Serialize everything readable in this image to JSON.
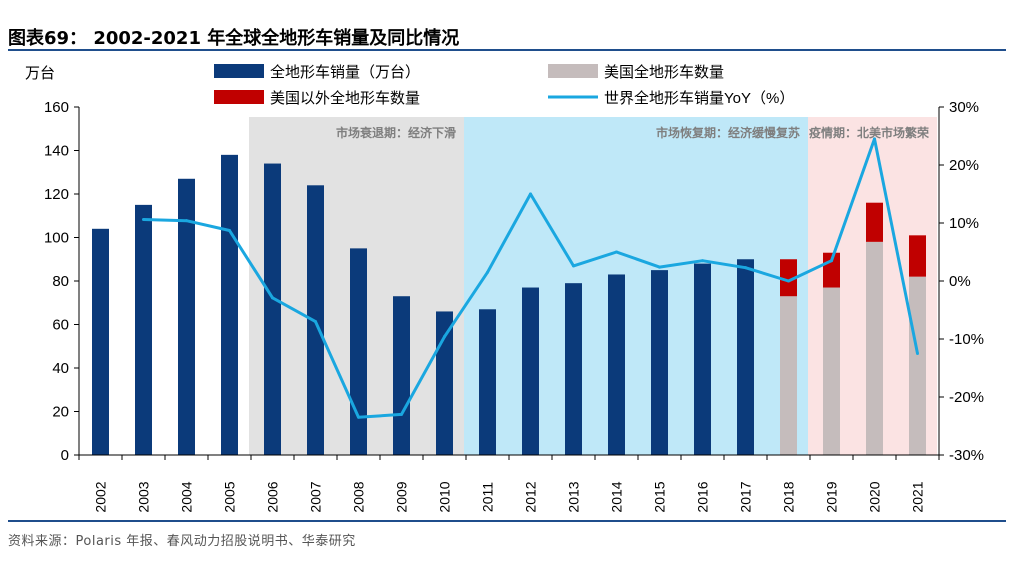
{
  "title": "图表69： 2002-2021 年全球全地形车销量及同比情况",
  "source": "资料来源：Polaris 年报、春风动力招股说明书、华泰研究",
  "colors": {
    "total_bar": "#0b3a7a",
    "us_bar": "#c5bcbc",
    "non_us_bar": "#c00000",
    "yoy_line": "#1aa7e0",
    "zone_decline": "#e2e2e2",
    "zone_recovery": "#bfe8f8",
    "zone_pandemic": "#fbe3e3",
    "zone_label": "#7f7f7f"
  },
  "chart_data": {
    "type": "bar",
    "title": "2002-2021 年全球全地形车销量及同比情况",
    "y_left_unit": "万台",
    "y_left_range": [
      0,
      160
    ],
    "y_left_ticks": [
      "0",
      "20",
      "40",
      "60",
      "80",
      "100",
      "120",
      "140",
      "160"
    ],
    "y_right_range": [
      -30,
      30
    ],
    "y_right_ticks": [
      "-30%",
      "-20%",
      "-10%",
      "0%",
      "10%",
      "20%",
      "30%"
    ],
    "categories": [
      "2002",
      "2003",
      "2004",
      "2005",
      "2006",
      "2007",
      "2008",
      "2009",
      "2010",
      "2011",
      "2012",
      "2013",
      "2014",
      "2015",
      "2016",
      "2017",
      "2018",
      "2019",
      "2020",
      "2021"
    ],
    "series": [
      {
        "name": "全地形车销量（万台）",
        "kind": "bar",
        "values": [
          104,
          115,
          127,
          138,
          134,
          124,
          95,
          73,
          66,
          67,
          77,
          79,
          83,
          85,
          88,
          90,
          null,
          null,
          null,
          null
        ]
      },
      {
        "name": "美国全地形车数量",
        "kind": "stacked-bar",
        "values": [
          null,
          null,
          null,
          null,
          null,
          null,
          null,
          null,
          null,
          null,
          null,
          null,
          null,
          null,
          null,
          null,
          73,
          77,
          98,
          82
        ]
      },
      {
        "name": "美国以外全地形车数量",
        "kind": "stacked-bar",
        "values": [
          null,
          null,
          null,
          null,
          null,
          null,
          null,
          null,
          null,
          null,
          null,
          null,
          null,
          null,
          null,
          null,
          17,
          16,
          18,
          19
        ]
      },
      {
        "name": "世界全地形车销量YoY（%）",
        "kind": "line",
        "axis": "right",
        "values": [
          null,
          10.6,
          10.4,
          8.7,
          -2.9,
          -7.0,
          -23.5,
          -23.0,
          -9.6,
          1.5,
          15.0,
          2.6,
          5.0,
          2.4,
          3.5,
          2.3,
          0,
          3.5,
          24.5,
          -12.5
        ]
      }
    ],
    "legend": [
      "全地形车销量（万台）",
      "美国全地形车数量",
      "美国以外全地形车数量",
      "世界全地形车销量YoY（%）"
    ],
    "zones": [
      {
        "label": "市场衰退期：经济下滑",
        "from": "2006",
        "to": "2010"
      },
      {
        "label": "市场恢复期：经济缓慢复苏",
        "from": "2011",
        "to": "2018"
      },
      {
        "label": "疫情期：北美市场繁荣",
        "from": "2019",
        "to": "2021"
      }
    ]
  }
}
